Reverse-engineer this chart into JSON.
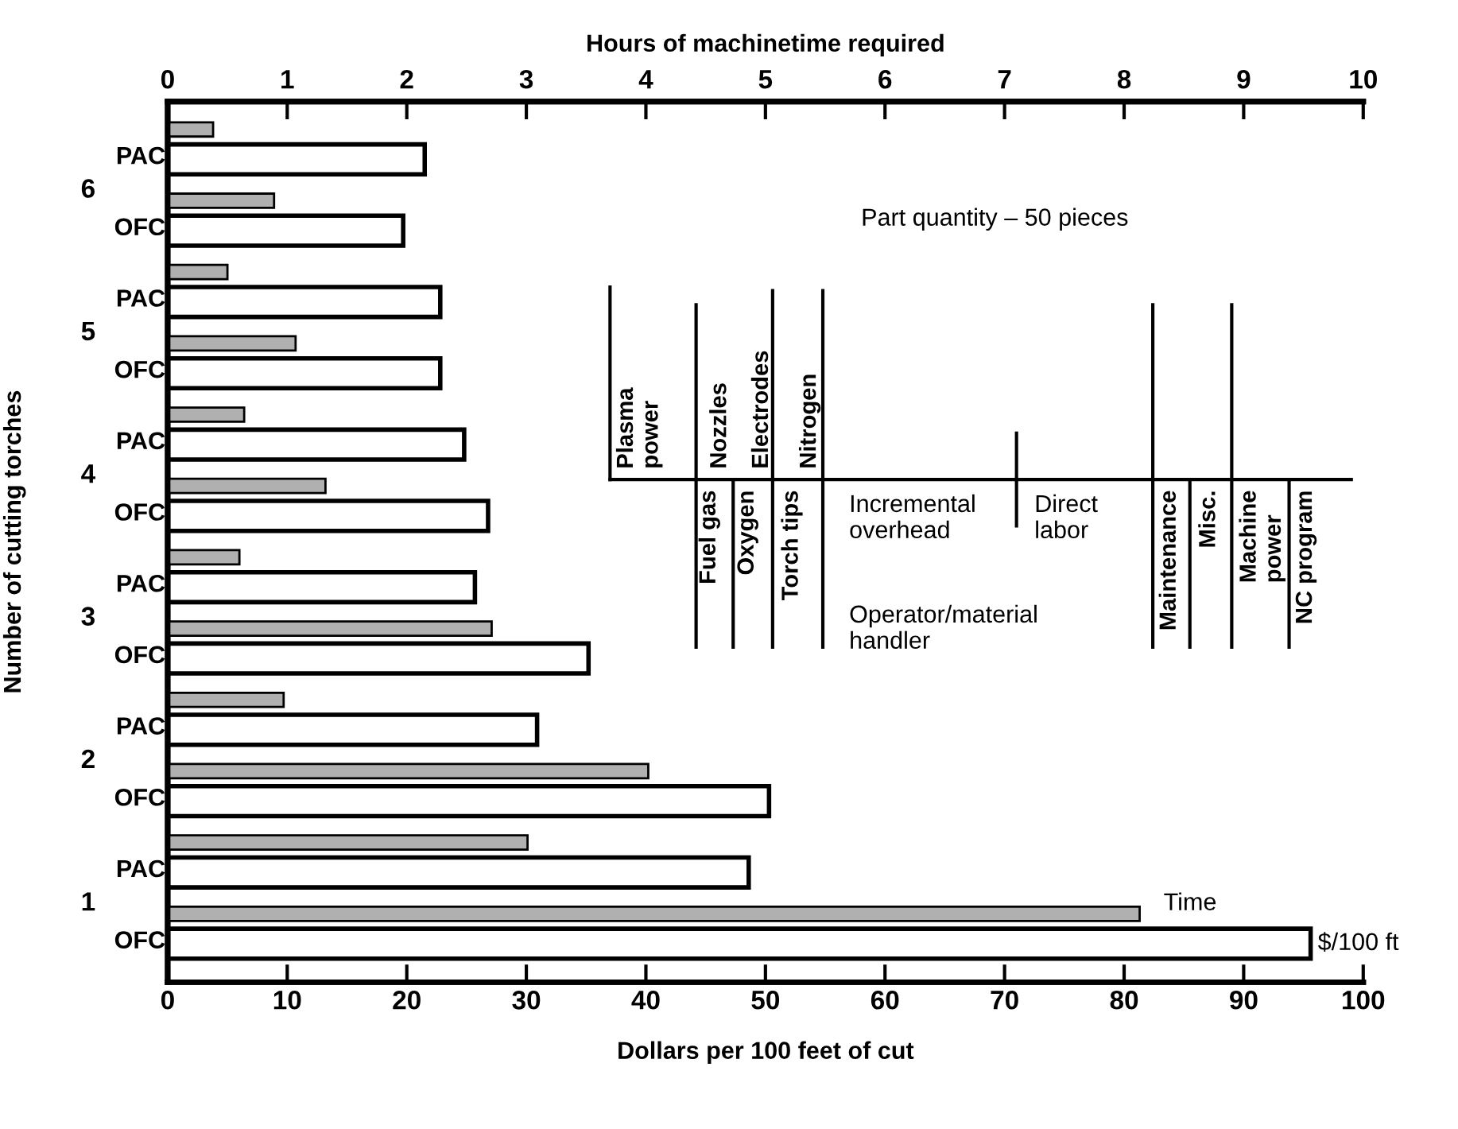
{
  "chart_data": {
    "type": "bar",
    "orientation": "horizontal",
    "x2label": "Hours of machinetime required",
    "xlabel": "Dollars per 100 feet of cut",
    "ylabel": "Number of cutting torches",
    "categories": [
      "PAC",
      "OFC",
      "PAC",
      "OFC",
      "PAC",
      "OFC",
      "PAC",
      "OFC",
      "PAC",
      "OFC",
      "PAC",
      "OFC"
    ],
    "series": [
      {
        "name": "Time",
        "axis": "x2",
        "color": "#b0b0b0",
        "values": [
          0.38,
          0.89,
          0.5,
          1.07,
          0.64,
          1.32,
          0.6,
          2.71,
          0.97,
          4.02,
          3.01,
          8.13
        ]
      },
      {
        "name": "$/100 ft",
        "color": "#ffffff",
        "values": [
          21.5,
          19.7,
          22.8,
          22.8,
          24.8,
          26.8,
          25.7,
          35.2,
          30.9,
          50.3,
          48.6,
          95.6
        ]
      }
    ],
    "xlim": [
      0,
      100
    ],
    "xticks": [
      0,
      10,
      20,
      30,
      40,
      50,
      60,
      70,
      80,
      90,
      100
    ],
    "x2lim": [
      0,
      10
    ],
    "x2ticks": [
      0,
      1,
      2,
      3,
      4,
      5,
      6,
      7,
      8,
      9,
      10
    ],
    "grid": false,
    "annotations": [
      "6",
      "5",
      "4",
      "3",
      "2",
      "1",
      "Part quantity – 50 pieces",
      "Plasma power",
      "Fuel gas",
      "Nozzles",
      "Oxygen",
      "Electrodes",
      "Torch tips",
      "Nitrogen",
      "Incremental overhead",
      "Direct labor",
      "Operator/material handler",
      "Maintenance",
      "Misc.",
      "Machine power",
      "NC program"
    ]
  }
}
